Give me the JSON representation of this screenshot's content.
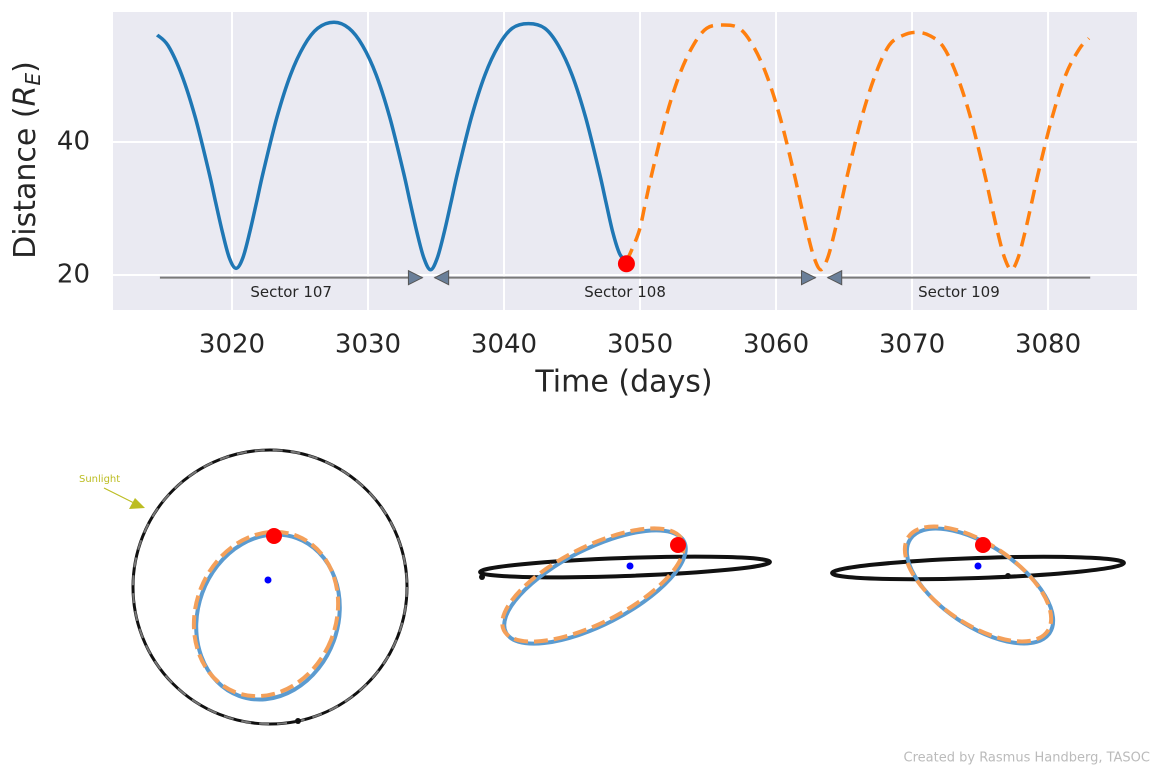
{
  "chart_data": {
    "type": "line",
    "xlabel": "Time (days)",
    "ylabel_parts": [
      "Distance (",
      "R",
      "E",
      ")"
    ],
    "xlim": [
      3011.25,
      3086.54
    ],
    "ylim": [
      14.74,
      59.55
    ],
    "xticks": [
      3020,
      3030,
      3040,
      3050,
      3060,
      3070,
      3080
    ],
    "yticks": [
      20,
      40
    ],
    "grid": true,
    "series": [
      {
        "color": "#1f77b4",
        "style": "solid",
        "x": [
          3014.5,
          3015.3,
          3016.3,
          3017.3,
          3018.3,
          3018.8,
          3019.3,
          3019.8,
          3020.3,
          3020.8,
          3021.3,
          3021.8,
          3022.3,
          3023.3,
          3024.3,
          3025.3,
          3026.3,
          3027.5,
          3028.6,
          3029.6,
          3030.6,
          3031.6,
          3032.6,
          3033.1,
          3033.6,
          3034.1,
          3034.6,
          3035.1,
          3035.6,
          3036.1,
          3036.6,
          3037.6,
          3038.6,
          3039.6,
          3040.6,
          3041.8,
          3043.0,
          3044.0,
          3045.0,
          3046.0,
          3047.0,
          3047.5,
          3048.0,
          3048.5,
          3049.0
        ],
        "values": [
          56.1,
          54.5,
          50.1,
          43.7,
          35.5,
          30.9,
          26.4,
          22.6,
          21.0,
          22.6,
          26.4,
          30.9,
          35.5,
          43.7,
          50.1,
          54.5,
          57.1,
          58.0,
          57.1,
          54.5,
          50.1,
          43.7,
          35.5,
          30.9,
          26.4,
          22.6,
          20.8,
          22.6,
          26.4,
          30.9,
          35.5,
          43.7,
          50.1,
          54.5,
          57.1,
          57.8,
          57.1,
          54.5,
          50.1,
          43.7,
          35.5,
          30.9,
          26.4,
          23.2,
          22.0
        ]
      },
      {
        "color": "#ff7f0e",
        "style": "dashed",
        "x": [
          3049.0,
          3049.9,
          3050.4,
          3050.9,
          3051.9,
          3052.9,
          3053.9,
          3054.9,
          3056.1,
          3057.3,
          3058.3,
          3059.3,
          3060.3,
          3061.3,
          3061.8,
          3062.3,
          3062.8,
          3063.3,
          3063.8,
          3064.3,
          3064.8,
          3065.3,
          3066.3,
          3067.3,
          3068.3,
          3069.3,
          3070.3,
          3071.3,
          3072.3,
          3073.3,
          3074.3,
          3075.3,
          3075.8,
          3076.3,
          3076.8,
          3077.3,
          3077.8,
          3078.3,
          3078.8,
          3079.3,
          3080.3,
          3081.3,
          3082.3,
          3083.0
        ],
        "values": [
          22.0,
          26.4,
          30.9,
          35.5,
          43.7,
          50.1,
          54.5,
          57.1,
          57.6,
          57.1,
          54.5,
          50.1,
          43.7,
          35.5,
          30.9,
          26.4,
          22.6,
          20.8,
          22.6,
          26.4,
          30.9,
          35.5,
          43.7,
          50.1,
          54.5,
          56.0,
          56.5,
          56.0,
          54.3,
          50.0,
          43.7,
          35.5,
          30.9,
          26.4,
          22.6,
          20.8,
          22.6,
          26.4,
          30.9,
          35.5,
          43.7,
          50.1,
          54.0,
          55.6
        ]
      }
    ],
    "marker": {
      "x": 3049.0,
      "y": 21.7,
      "color": "#ff0000"
    },
    "sector_y": 19.6,
    "sectors": [
      {
        "name": "Sector 107",
        "start": 3014.7,
        "end": 3034.0
      },
      {
        "name": "Sector 108",
        "start": 3034.9,
        "end": 3062.9
      },
      {
        "name": "Sector 109",
        "start": 3063.8,
        "end": 3083.1
      }
    ]
  },
  "orbits": {
    "sunlight_label": "Sunlight"
  },
  "credit": "Created by Rasmus Handberg, TASOC"
}
